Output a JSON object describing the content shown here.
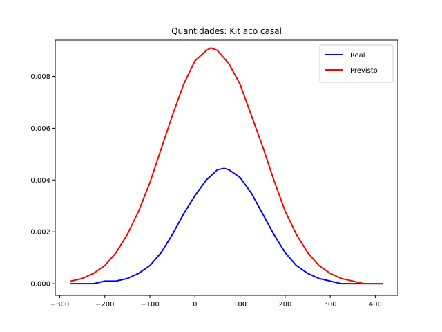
{
  "chart_data": {
    "type": "line",
    "title": "Quantidades: Kit aco casal",
    "xlabel": "",
    "ylabel": "",
    "xlim": [
      -310,
      450
    ],
    "ylim": [
      -0.00045,
      0.0094
    ],
    "xticks": [
      -300,
      -200,
      -100,
      0,
      100,
      200,
      300,
      400
    ],
    "xtick_labels": [
      "−300",
      "−200",
      "−100",
      "0",
      "100",
      "200",
      "300",
      "400"
    ],
    "yticks": [
      0.0,
      0.002,
      0.004,
      0.006,
      0.008
    ],
    "ytick_labels": [
      "0.000",
      "0.002",
      "0.004",
      "0.006",
      "0.008"
    ],
    "legend_position": "top-right",
    "grid": false,
    "series": [
      {
        "name": "Real",
        "color": "#0000ff",
        "x": [
          -275,
          -250,
          -225,
          -200,
          -175,
          -150,
          -125,
          -100,
          -75,
          -50,
          -25,
          0,
          25,
          50,
          65,
          75,
          100,
          125,
          150,
          175,
          200,
          225,
          250,
          275,
          300,
          325,
          350,
          375,
          400,
          415
        ],
        "y": [
          0.0,
          0.0,
          0.0,
          0.0001,
          0.0001,
          0.0002,
          0.0004,
          0.0007,
          0.0012,
          0.0019,
          0.0027,
          0.0034,
          0.004,
          0.0044,
          0.00445,
          0.0044,
          0.0041,
          0.0035,
          0.0027,
          0.0019,
          0.0012,
          0.0007,
          0.0004,
          0.0002,
          0.0001,
          0.0,
          0.0,
          0.0,
          0.0,
          0.0
        ]
      },
      {
        "name": "Previsto",
        "color": "#ff0000",
        "x": [
          -275,
          -250,
          -225,
          -200,
          -175,
          -150,
          -125,
          -100,
          -75,
          -50,
          -25,
          0,
          25,
          35,
          50,
          75,
          100,
          125,
          150,
          175,
          200,
          225,
          250,
          275,
          300,
          325,
          350,
          375,
          400,
          415
        ],
        "y": [
          0.0001,
          0.0002,
          0.0004,
          0.0007,
          0.0012,
          0.0019,
          0.0028,
          0.0039,
          0.0052,
          0.0065,
          0.0077,
          0.0086,
          0.009,
          0.0091,
          0.009,
          0.0085,
          0.0077,
          0.0065,
          0.0053,
          0.004,
          0.0028,
          0.0019,
          0.0012,
          0.0007,
          0.0004,
          0.0002,
          0.0001,
          0.0,
          0.0,
          0.0
        ]
      }
    ]
  }
}
